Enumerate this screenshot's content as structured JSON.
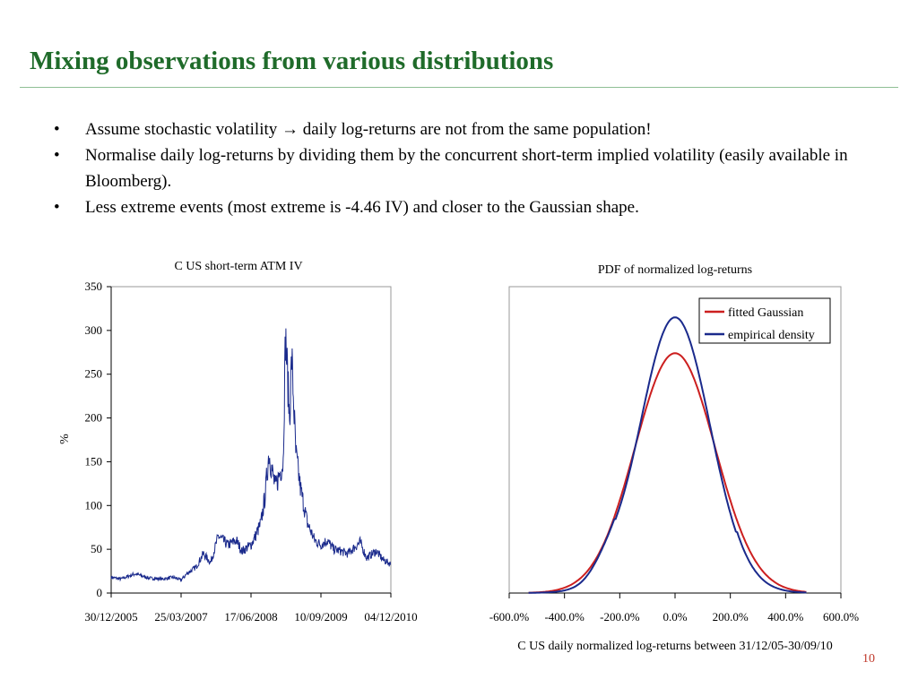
{
  "slide": {
    "title": "Mixing observations from various distributions",
    "bullets": [
      "Assume stochastic volatility → daily log-returns are not from the same population!",
      "Normalise daily log-returns by dividing them by the concurrent short-term implied volatility (easily available in Bloomberg).",
      "Less extreme events (most extreme is -4.46 IV) and closer to the Gaussian shape."
    ],
    "bullet_glyph": "•",
    "page_number": "10",
    "colors": {
      "title": "#1f6b2a",
      "rule": "#8fbf95",
      "series_blue": "#1a2a8c",
      "series_red": "#cc1f1f"
    }
  },
  "chart_data": [
    {
      "type": "line",
      "title": "C US short-term ATM IV",
      "xlabel": "",
      "ylabel": "%",
      "x_ticks": [
        "30/12/2005",
        "25/03/2007",
        "17/06/2008",
        "10/09/2009",
        "04/12/2010"
      ],
      "ylim": [
        0,
        350
      ],
      "yticks": [
        0,
        50,
        100,
        150,
        200,
        250,
        300,
        350
      ],
      "grid": false,
      "legend": "none",
      "series": [
        {
          "color": "#1a2a8c",
          "x": [
            "2005-12-30",
            "2006-03-01",
            "2006-06-01",
            "2006-09-01",
            "2006-12-01",
            "2007-02-01",
            "2007-03-25",
            "2007-05-01",
            "2007-07-01",
            "2007-08-15",
            "2007-10-01",
            "2007-11-20",
            "2008-01-20",
            "2008-03-15",
            "2008-04-20",
            "2008-06-17",
            "2008-07-15",
            "2008-08-20",
            "2008-09-15",
            "2008-10-10",
            "2008-11-20",
            "2009-01-10",
            "2009-01-25",
            "2009-02-20",
            "2009-03-06",
            "2009-04-01",
            "2009-05-01",
            "2009-06-15",
            "2009-08-01",
            "2009-09-10",
            "2009-10-20",
            "2009-12-01",
            "2010-01-15",
            "2010-03-01",
            "2010-05-20",
            "2010-07-01",
            "2010-09-01",
            "2010-10-15",
            "2010-12-04"
          ],
          "values": [
            18,
            16,
            22,
            17,
            16,
            18,
            15,
            22,
            30,
            45,
            35,
            65,
            55,
            60,
            48,
            55,
            65,
            80,
            110,
            160,
            120,
            150,
            295,
            200,
            270,
            160,
            120,
            80,
            60,
            55,
            60,
            50,
            48,
            45,
            58,
            40,
            48,
            38,
            33
          ]
        }
      ]
    },
    {
      "type": "line",
      "title": "PDF of normalized log-returns",
      "xlabel": "C US daily normalized log-returns between 31/12/05-30/09/10",
      "ylabel": "",
      "x_tick_labels": [
        "-600.0%",
        "-400.0%",
        "-200.0%",
        "0.0%",
        "200.0%",
        "400.0%",
        "600.0%"
      ],
      "xlim": [
        -6,
        6
      ],
      "ylim": [
        0,
        0.35
      ],
      "grid": false,
      "legend": "top-right",
      "series": [
        {
          "name": "fitted Gaussian",
          "color": "#cc1f1f",
          "mean": 0,
          "sd": 1.45,
          "peak": 0.274
        },
        {
          "name": "empirical density",
          "color": "#1a2a8c",
          "mean": 0,
          "sd": 1.27,
          "peak": 0.315
        }
      ]
    }
  ]
}
